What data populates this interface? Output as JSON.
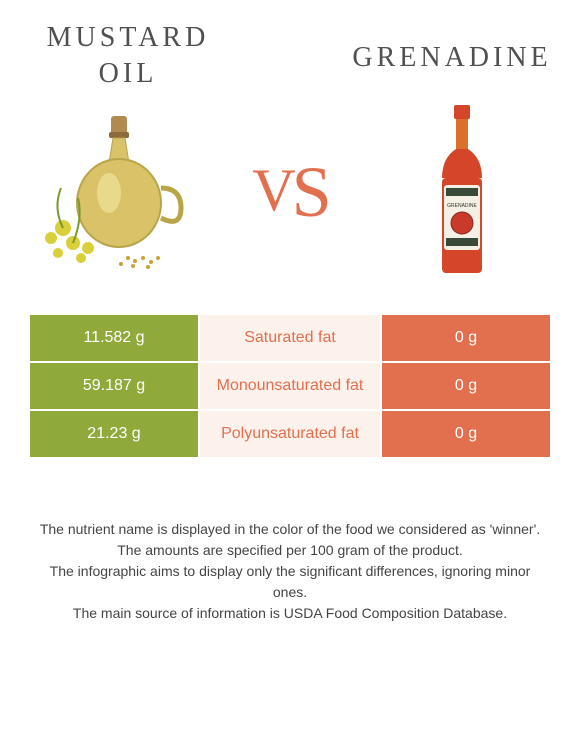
{
  "left": {
    "title": "MUSTARD\nOIL",
    "color": "#8fa93a"
  },
  "right": {
    "title": "GRENADINE",
    "color": "#e2704f"
  },
  "vs_text": "vs",
  "vs_color": "#e2704f",
  "table": {
    "mid_bg": "#fdf1ec",
    "mid_text_color": "#e2704f",
    "rows": [
      {
        "left": "11.582 g",
        "mid": "Saturated fat",
        "right": "0 g"
      },
      {
        "left": "59.187 g",
        "mid": "Monounsaturated fat",
        "right": "0 g"
      },
      {
        "left": "21.23 g",
        "mid": "Polyunsaturated fat",
        "right": "0 g"
      }
    ]
  },
  "footer": {
    "line1": "The nutrient name is displayed in the color of the food we considered as 'winner'.",
    "line2": "The amounts are specified per 100 gram of the product.",
    "line3": "The infographic aims to display only the significant differences, ignoring minor ones.",
    "line4": "The main source of information is USDA Food Composition Database."
  }
}
